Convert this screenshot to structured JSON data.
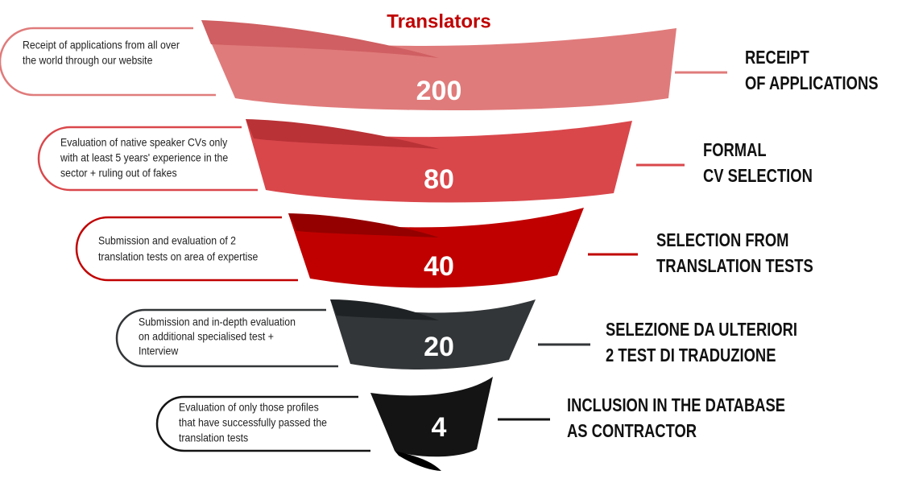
{
  "title": "Translators",
  "stages": [
    {
      "number": "200",
      "label": [
        "RECEIPT",
        "OF APPLICATIONS"
      ],
      "description": [
        "Receipt of applications from all over",
        "the world through our website"
      ]
    },
    {
      "number": "80",
      "label": [
        "FORMAL",
        "CV SELECTION"
      ],
      "description": [
        "Evaluation of native speaker CVs only",
        "with at least 5 years' experience in the",
        "sector + ruling out of fakes"
      ]
    },
    {
      "number": "40",
      "label": [
        "SELECTION FROM",
        "TRANSLATION TESTS"
      ],
      "description": [
        "Submission and evaluation of 2",
        "translation tests on area of expertise"
      ]
    },
    {
      "number": "20",
      "label": [
        "SELEZIONE DA ULTERIORI",
        "2 TEST DI TRADUZIONE"
      ],
      "description": [
        "Submission and in-depth evaluation",
        "on additional specialised test +",
        "Interview"
      ]
    },
    {
      "number": "4",
      "label": [
        "INCLUSION IN THE DATABASE",
        "AS CONTRACTOR"
      ],
      "description": [
        "Evaluation of only those profiles",
        "that have successfully passed the",
        "translation tests"
      ]
    }
  ]
}
